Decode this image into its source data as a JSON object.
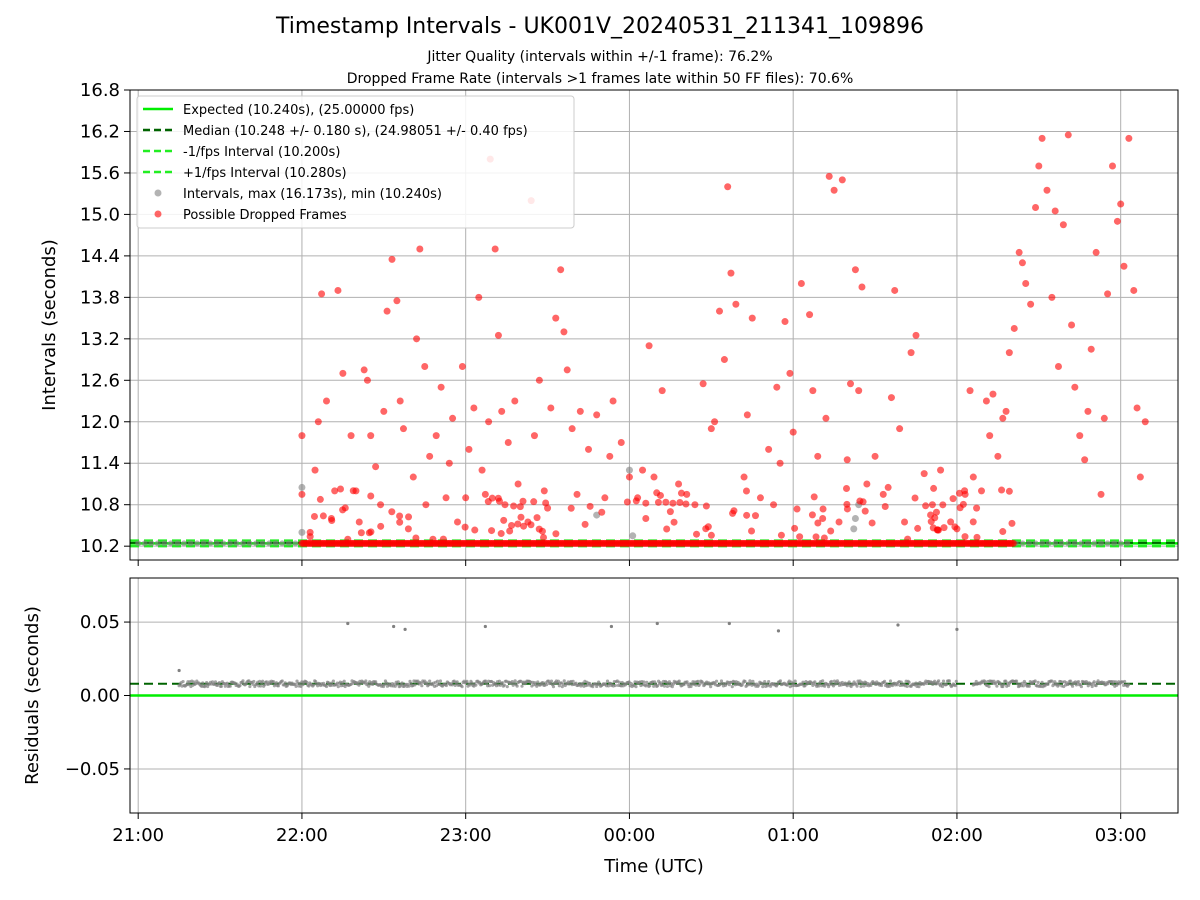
{
  "chart": {
    "title": "Timestamp Intervals - UK001V_20240531_211341_109896",
    "subtitle_1": "Jitter Quality (intervals within +/-1 frame): 76.2%",
    "subtitle_2": "Dropped Frame Rate (intervals >1 frames late within 50 FF files): 70.6%"
  },
  "colors": {
    "expected": "#00ee00",
    "median": "#006400",
    "fps_band": "#22ee22",
    "intervals": "#808080",
    "dropped": "#ff0000",
    "grid": "#b0b0b0"
  },
  "chart_data": [
    {
      "type": "scatter",
      "panel": "top",
      "ylabel": "Intervals (seconds)",
      "ylim": [
        10.0,
        16.8
      ],
      "yticks": [
        "10.2",
        "10.8",
        "11.4",
        "12.0",
        "12.6",
        "13.2",
        "13.8",
        "14.4",
        "15.0",
        "15.6",
        "16.2",
        "16.8"
      ],
      "xlim_hours": [
        20.95,
        27.35
      ],
      "grid": true,
      "legend_position": "top-left",
      "legend": [
        {
          "label": "Expected (10.240s), (25.00000 fps)",
          "style": "solid-line",
          "color": "#00ee00"
        },
        {
          "label": "Median (10.248 +/- 0.180 s), (24.98051 +/- 0.40 fps)",
          "style": "dashed-line",
          "color": "#006400"
        },
        {
          "label": "-1/fps Interval (10.200s)",
          "style": "dashed-line",
          "color": "#22ee22"
        },
        {
          "label": "+1/fps Interval (10.280s)",
          "style": "dashed-line",
          "color": "#22ee22"
        },
        {
          "label": "Intervals, max (16.173s), min (10.240s)",
          "style": "marker",
          "color": "#808080"
        },
        {
          "label": "Possible Dropped Frames",
          "style": "marker",
          "color": "#ff0000"
        }
      ],
      "lines": [
        {
          "name": "Expected",
          "y": 10.24
        },
        {
          "name": "Median",
          "y": 10.248
        },
        {
          "name": "-1/fps",
          "y": 10.2
        },
        {
          "name": "+1/fps",
          "y": 10.28
        }
      ],
      "series": [
        {
          "name": "Intervals",
          "segments_baseline": [
            [
              21.0,
              22.0
            ],
            [
              26.0,
              27.05
            ]
          ],
          "extra_points": [
            [
              22.0,
              10.4
            ],
            [
              22.0,
              11.05
            ],
            [
              23.8,
              10.65
            ],
            [
              24.0,
              11.3
            ],
            [
              24.02,
              10.35
            ],
            [
              25.37,
              10.45
            ],
            [
              25.38,
              10.6
            ],
            [
              25.4,
              10.8
            ]
          ]
        },
        {
          "name": "Possible Dropped Frames",
          "baseline_range": [
            22.0,
            26.35
          ],
          "baseline_y": 10.24,
          "points": [
            [
              22.0,
              11.8
            ],
            [
              22.0,
              10.95
            ],
            [
              22.05,
              10.4
            ],
            [
              22.08,
              11.3
            ],
            [
              22.1,
              12.0
            ],
            [
              22.12,
              13.85
            ],
            [
              22.15,
              12.3
            ],
            [
              22.18,
              10.6
            ],
            [
              22.2,
              11.0
            ],
            [
              22.22,
              13.9
            ],
            [
              22.25,
              12.7
            ],
            [
              22.28,
              10.3
            ],
            [
              22.3,
              11.8
            ],
            [
              22.33,
              11.0
            ],
            [
              22.35,
              10.55
            ],
            [
              22.38,
              12.75
            ],
            [
              22.4,
              12.6
            ],
            [
              22.42,
              11.8
            ],
            [
              22.45,
              11.35
            ],
            [
              22.48,
              10.8
            ],
            [
              22.5,
              12.15
            ],
            [
              22.52,
              13.6
            ],
            [
              22.55,
              14.35
            ],
            [
              22.58,
              13.75
            ],
            [
              22.6,
              12.3
            ],
            [
              22.62,
              11.9
            ],
            [
              22.65,
              10.45
            ],
            [
              22.68,
              11.2
            ],
            [
              22.7,
              13.2
            ],
            [
              22.72,
              14.5
            ],
            [
              22.75,
              12.8
            ],
            [
              22.78,
              11.5
            ],
            [
              22.8,
              10.3
            ],
            [
              22.82,
              11.8
            ],
            [
              22.85,
              12.5
            ],
            [
              22.88,
              10.9
            ],
            [
              22.9,
              11.4
            ],
            [
              22.92,
              12.05
            ],
            [
              22.95,
              10.55
            ],
            [
              22.98,
              12.8
            ],
            [
              23.0,
              10.9
            ],
            [
              23.02,
              11.6
            ],
            [
              23.05,
              12.2
            ],
            [
              23.08,
              13.8
            ],
            [
              23.1,
              11.3
            ],
            [
              23.12,
              10.95
            ],
            [
              23.14,
              12.0
            ],
            [
              23.15,
              15.8
            ],
            [
              23.18,
              14.5
            ],
            [
              23.2,
              13.25
            ],
            [
              23.22,
              12.15
            ],
            [
              23.24,
              10.8
            ],
            [
              23.26,
              11.7
            ],
            [
              23.28,
              10.5
            ],
            [
              23.3,
              12.3
            ],
            [
              23.32,
              11.1
            ],
            [
              23.35,
              10.85
            ],
            [
              23.38,
              10.55
            ],
            [
              23.4,
              15.2
            ],
            [
              23.42,
              11.8
            ],
            [
              23.45,
              12.6
            ],
            [
              23.48,
              11.0
            ],
            [
              23.5,
              10.75
            ],
            [
              23.52,
              12.2
            ],
            [
              23.55,
              13.5
            ],
            [
              23.58,
              14.2
            ],
            [
              23.6,
              13.3
            ],
            [
              23.62,
              12.75
            ],
            [
              23.65,
              11.9
            ],
            [
              23.68,
              10.95
            ],
            [
              23.7,
              12.15
            ],
            [
              23.75,
              11.6
            ],
            [
              23.8,
              12.1
            ],
            [
              23.85,
              10.9
            ],
            [
              23.88,
              11.5
            ],
            [
              23.9,
              12.3
            ],
            [
              23.95,
              11.7
            ],
            [
              24.0,
              11.2
            ],
            [
              24.05,
              10.9
            ],
            [
              24.08,
              11.3
            ],
            [
              24.1,
              10.6
            ],
            [
              24.12,
              13.1
            ],
            [
              24.15,
              11.2
            ],
            [
              24.2,
              12.45
            ],
            [
              24.25,
              10.7
            ],
            [
              24.3,
              11.1
            ],
            [
              24.35,
              10.95
            ],
            [
              24.4,
              10.8
            ],
            [
              24.45,
              12.55
            ],
            [
              24.5,
              11.9
            ],
            [
              24.52,
              12.0
            ],
            [
              24.55,
              13.6
            ],
            [
              24.58,
              12.9
            ],
            [
              24.6,
              15.4
            ],
            [
              24.62,
              14.15
            ],
            [
              24.65,
              13.7
            ],
            [
              24.7,
              11.2
            ],
            [
              24.72,
              12.1
            ],
            [
              24.75,
              13.5
            ],
            [
              24.8,
              10.9
            ],
            [
              24.85,
              11.6
            ],
            [
              24.88,
              10.8
            ],
            [
              24.9,
              12.5
            ],
            [
              24.92,
              11.4
            ],
            [
              24.95,
              13.45
            ],
            [
              24.98,
              12.7
            ],
            [
              25.0,
              11.85
            ],
            [
              25.05,
              14.0
            ],
            [
              25.1,
              13.55
            ],
            [
              25.12,
              12.45
            ],
            [
              25.15,
              11.5
            ],
            [
              25.18,
              10.6
            ],
            [
              25.2,
              12.05
            ],
            [
              25.22,
              15.55
            ],
            [
              25.25,
              15.35
            ],
            [
              25.28,
              10.55
            ],
            [
              25.3,
              15.5
            ],
            [
              25.33,
              11.45
            ],
            [
              25.35,
              12.55
            ],
            [
              25.38,
              14.2
            ],
            [
              25.4,
              12.45
            ],
            [
              25.42,
              13.95
            ],
            [
              25.45,
              11.1
            ],
            [
              25.5,
              11.5
            ],
            [
              25.55,
              10.95
            ],
            [
              25.58,
              11.05
            ],
            [
              25.6,
              12.35
            ],
            [
              25.62,
              13.9
            ],
            [
              25.65,
              11.9
            ],
            [
              25.68,
              10.55
            ],
            [
              25.72,
              13.0
            ],
            [
              25.75,
              13.25
            ],
            [
              25.8,
              11.25
            ],
            [
              25.85,
              10.8
            ],
            [
              25.9,
              11.3
            ],
            [
              26.0,
              10.45
            ],
            [
              26.05,
              10.95
            ],
            [
              26.08,
              12.45
            ],
            [
              26.1,
              11.2
            ],
            [
              26.12,
              10.75
            ],
            [
              26.15,
              11.0
            ],
            [
              26.18,
              12.3
            ],
            [
              26.2,
              11.8
            ],
            [
              26.22,
              12.4
            ],
            [
              26.25,
              11.5
            ],
            [
              26.28,
              12.05
            ],
            [
              26.3,
              12.15
            ],
            [
              26.32,
              13.0
            ],
            [
              26.35,
              13.35
            ],
            [
              26.38,
              14.45
            ],
            [
              26.4,
              14.3
            ],
            [
              26.42,
              14.0
            ],
            [
              26.45,
              13.7
            ],
            [
              26.48,
              15.1
            ],
            [
              26.5,
              15.7
            ],
            [
              26.52,
              16.1
            ],
            [
              26.55,
              15.35
            ],
            [
              26.58,
              13.8
            ],
            [
              26.6,
              15.05
            ],
            [
              26.62,
              12.8
            ],
            [
              26.65,
              14.85
            ],
            [
              26.68,
              16.15
            ],
            [
              26.7,
              13.4
            ],
            [
              26.72,
              12.5
            ],
            [
              26.75,
              11.8
            ],
            [
              26.78,
              11.45
            ],
            [
              26.8,
              12.15
            ],
            [
              26.82,
              13.05
            ],
            [
              26.85,
              14.45
            ],
            [
              26.88,
              10.95
            ],
            [
              26.9,
              12.05
            ],
            [
              26.92,
              13.85
            ],
            [
              26.95,
              15.7
            ],
            [
              26.98,
              14.9
            ],
            [
              27.0,
              15.15
            ],
            [
              27.02,
              14.25
            ],
            [
              27.05,
              16.1
            ],
            [
              27.08,
              13.9
            ],
            [
              27.1,
              12.2
            ],
            [
              27.12,
              11.2
            ],
            [
              27.15,
              12.0
            ]
          ]
        }
      ]
    },
    {
      "type": "scatter",
      "panel": "bottom",
      "ylabel": "Residuals (seconds)",
      "xlabel": "Time (UTC)",
      "ylim": [
        -0.08,
        0.08
      ],
      "yticks": [
        "−0.05",
        "0.00",
        "0.05"
      ],
      "xticks": [
        "21:00",
        "22:00",
        "23:00",
        "00:00",
        "01:00",
        "02:00",
        "03:00"
      ],
      "grid": true,
      "lines": [
        {
          "name": "Zero",
          "y": 0.0
        },
        {
          "name": "Median",
          "y": 0.008
        }
      ],
      "series": [
        {
          "name": "Residuals",
          "band_ranges": [
            [
              21.25,
              26.0
            ],
            [
              26.1,
              27.05
            ]
          ],
          "band_y": [
            0.006,
            0.01
          ],
          "points": [
            [
              21.25,
              0.017
            ],
            [
              22.28,
              0.049
            ],
            [
              22.56,
              0.047
            ],
            [
              22.63,
              0.045
            ],
            [
              23.12,
              0.047
            ],
            [
              23.89,
              0.047
            ],
            [
              24.17,
              0.049
            ],
            [
              24.61,
              0.049
            ],
            [
              24.91,
              0.044
            ],
            [
              25.64,
              0.048
            ],
            [
              26.0,
              0.045
            ]
          ]
        }
      ]
    }
  ]
}
